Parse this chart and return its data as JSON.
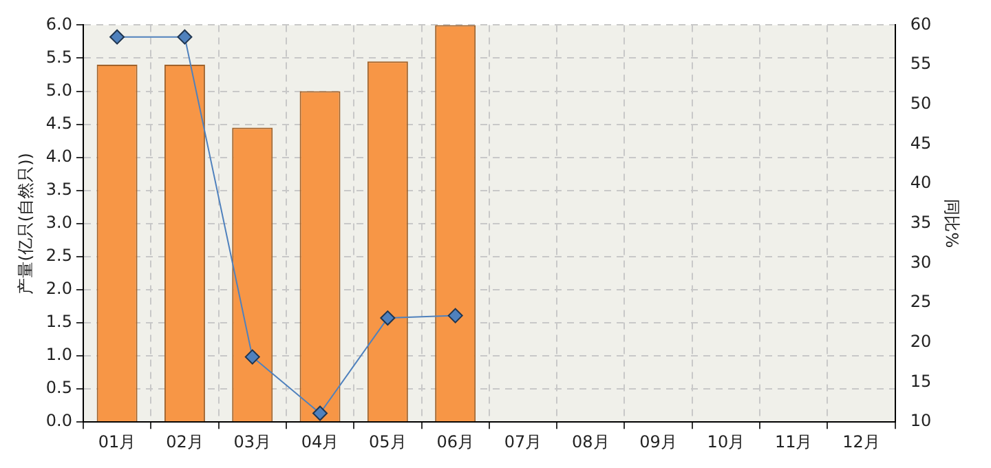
{
  "chart_data": {
    "type": "bar",
    "ylabel": "产量(亿只(自然只))",
    "y2label": "同比%",
    "categories": [
      "01月",
      "02月",
      "03月",
      "04月",
      "05月",
      "06月",
      "07月",
      "08月",
      "09月",
      "10月",
      "11月",
      "12月"
    ],
    "series": [
      {
        "color": "#f79646",
        "values": [
          5.4,
          5.4,
          4.45,
          5.0,
          5.45,
          6.0,
          null,
          null,
          null,
          null,
          null,
          null
        ]
      },
      {
        "type": "line",
        "axis": "y2",
        "color": "#4f81bd",
        "marker": "diamond",
        "values": [
          58.5,
          58.5,
          18.2,
          11.1,
          23.1,
          23.4,
          null,
          null,
          null,
          null,
          null,
          null
        ]
      }
    ],
    "ylim": [
      0,
      6
    ],
    "yticks": [
      {
        "value": 0,
        "label": "0.0"
      },
      {
        "value": 0.5,
        "label": "0.5"
      },
      {
        "value": 1,
        "label": "1.0"
      },
      {
        "value": 1.5,
        "label": "1.5"
      },
      {
        "value": 2,
        "label": "2.0"
      },
      {
        "value": 2.5,
        "label": "2.5"
      },
      {
        "value": 3,
        "label": "3.0"
      },
      {
        "value": 3.5,
        "label": "3.5"
      },
      {
        "value": 4,
        "label": "4.0"
      },
      {
        "value": 4.5,
        "label": "4.5"
      },
      {
        "value": 5,
        "label": "5.0"
      },
      {
        "value": 5.5,
        "label": "5.5"
      },
      {
        "value": 6,
        "label": "6.0"
      }
    ],
    "y2lim": [
      10,
      60
    ],
    "y2ticks": [
      10,
      15,
      20,
      25,
      30,
      35,
      40,
      45,
      50,
      55,
      60
    ],
    "grid": true,
    "legend": false
  }
}
